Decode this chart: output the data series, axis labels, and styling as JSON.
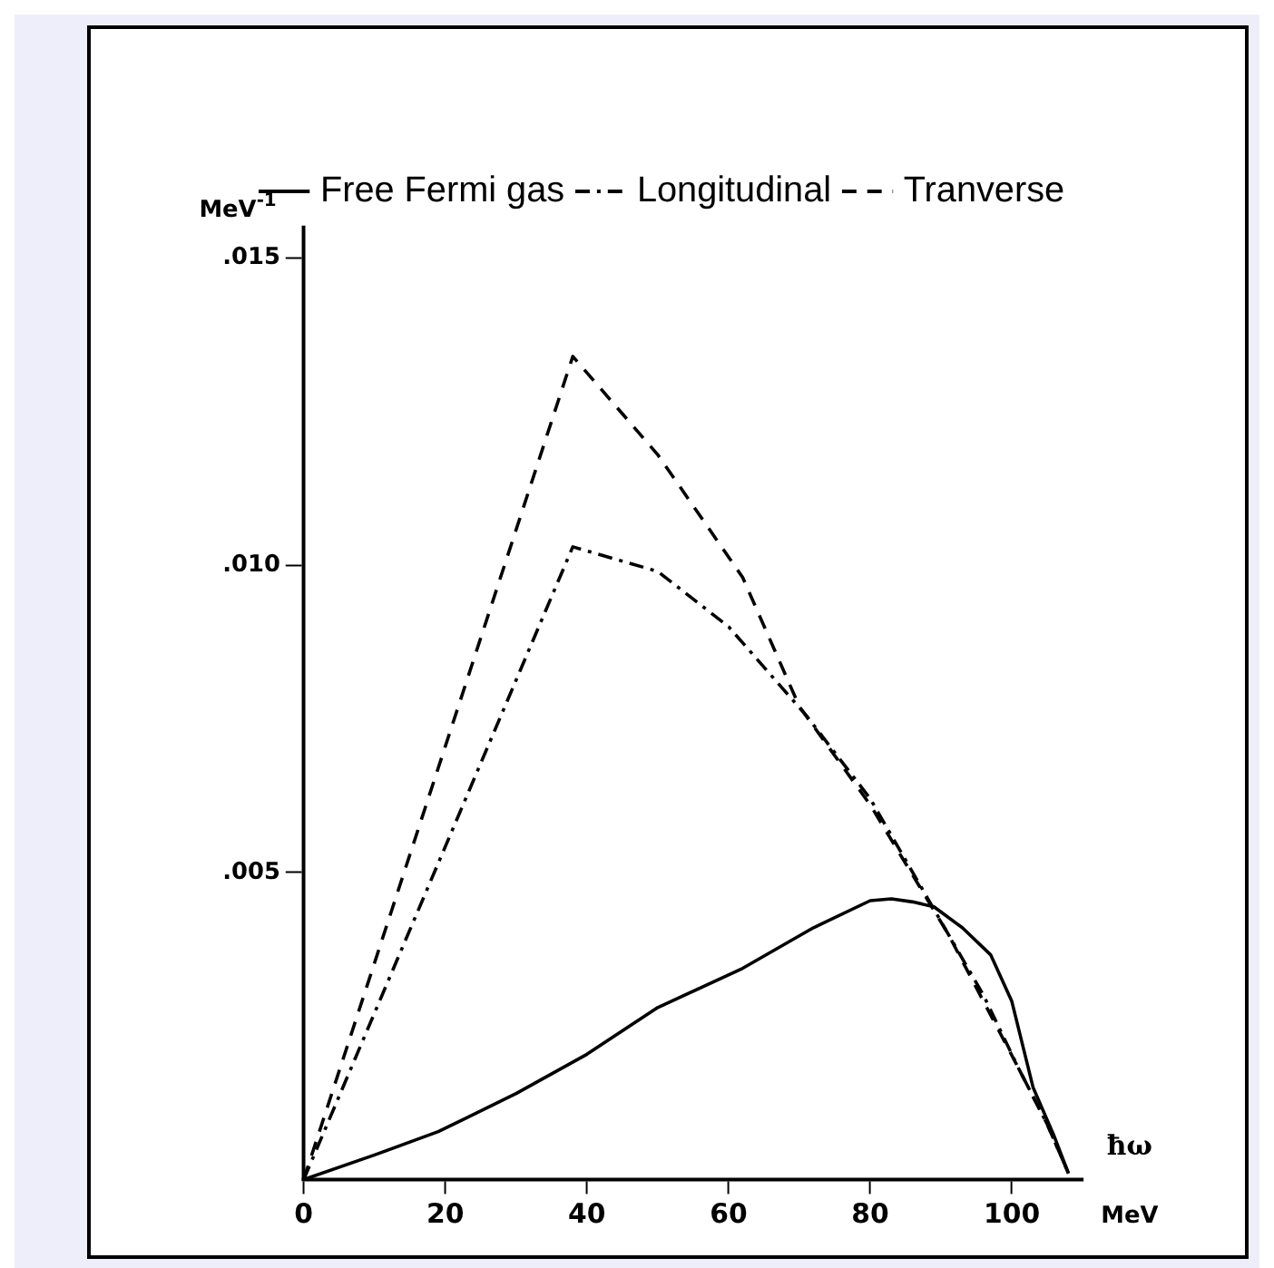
{
  "chart_data": {
    "type": "line",
    "xlabel": "ħω",
    "ylabel": "MeV$^{-1}$",
    "annotations": [
      "MeV"
    ],
    "xlim": [
      0,
      110
    ],
    "ylim": [
      0,
      0.0155
    ],
    "xticks": [
      0,
      20,
      40,
      60,
      80,
      100
    ],
    "yticks": [
      {
        "value": 0.005,
        "label": ".005"
      },
      {
        "value": 0.01,
        "label": ".010"
      },
      {
        "value": 0.015,
        "label": ".015"
      }
    ],
    "grid": false,
    "legend": "top right",
    "marker": "none",
    "series": [
      {
        "name": "Free Fermi gas",
        "color": "#000000",
        "line_style": "solid",
        "x": [
          0,
          10,
          19,
          30,
          40,
          50,
          62,
          72,
          80,
          83,
          86,
          89,
          93,
          97,
          100,
          103,
          106,
          108
        ],
        "values": [
          0,
          0.0004,
          0.00078,
          0.0014,
          0.00204,
          0.0028,
          0.00344,
          0.0041,
          0.00454,
          0.00457,
          0.00452,
          0.00444,
          0.0041,
          0.00366,
          0.0029,
          0.0015,
          0.0007,
          0.0001
        ]
      },
      {
        "name": "Longitudinal",
        "color": "#000000",
        "line_style": "dashdot",
        "x": [
          0,
          38,
          50,
          60,
          71,
          80,
          91,
          96,
          101,
          105,
          108
        ],
        "values": [
          0,
          0.0103,
          0.0099,
          0.009,
          0.00755,
          0.0062,
          0.004,
          0.003,
          0.0018,
          0.0009,
          0.0001
        ]
      },
      {
        "name": "Tranverse",
        "color": "#000000",
        "line_style": "dashed",
        "x": [
          0,
          38,
          50,
          62,
          70,
          80,
          91,
          96,
          101,
          105,
          108
        ],
        "values": [
          0,
          0.0134,
          0.0118,
          0.0098,
          0.0077,
          0.0061,
          0.004,
          0.0029,
          0.0018,
          0.0009,
          0.0001
        ]
      }
    ]
  }
}
